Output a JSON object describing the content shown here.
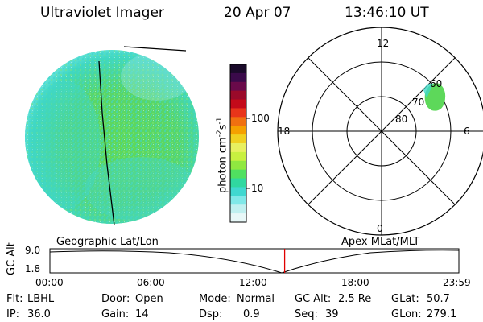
{
  "header": {
    "instrument": "Ultraviolet Imager",
    "date": "20 Apr 07",
    "time": "13:46:10 UT"
  },
  "colorbar": {
    "unit_main": "photon cm",
    "unit_sup1": "-2",
    "unit_s": "s",
    "unit_sup2": "-1",
    "ticks": [
      "100",
      "10"
    ],
    "colors": [
      "#1a0a2a",
      "#3a0a4a",
      "#6a0a4a",
      "#9a0a2a",
      "#c40a1a",
      "#e8351a",
      "#f07010",
      "#f5a000",
      "#f0d020",
      "#e8f060",
      "#c8f040",
      "#90e840",
      "#50e060",
      "#30d8a0",
      "#40d8d0",
      "#80e8e8",
      "#c0f0f0",
      "#e8f8f8"
    ]
  },
  "polar": {
    "mlt_labels": [
      "12",
      "18",
      "6",
      "0"
    ],
    "lat_labels": [
      "60",
      "70",
      "80"
    ]
  },
  "timeline": {
    "ylabel": "GC Alt",
    "ymax": "9.0",
    "ymin": "1.8",
    "left_caption": "Geographic Lat/Lon",
    "right_caption": "Apex  MLat/MLT",
    "xticks": [
      "00:00",
      "06:00",
      "12:00",
      "18:00",
      "23:59"
    ],
    "current_time_fraction": 0.574
  },
  "footer": {
    "flt_label": "Flt:",
    "flt_value": "LBHL",
    "ip_label": "IP:",
    "ip_value": "36.0",
    "door_label": "Door:",
    "door_value": "Open",
    "gain_label": "Gain:",
    "gain_value": "14",
    "mode_label": "Mode:",
    "mode_value": "Normal",
    "dsp_label": "Dsp:",
    "dsp_value": "0.9",
    "gcalt_label": "GC Alt:",
    "gcalt_value": "2.5 Re",
    "seq_label": "Seq:",
    "seq_value": "39",
    "glat_label": "GLat:",
    "glat_value": "50.7",
    "glon_label": "GLon:",
    "glon_value": "279.1"
  }
}
